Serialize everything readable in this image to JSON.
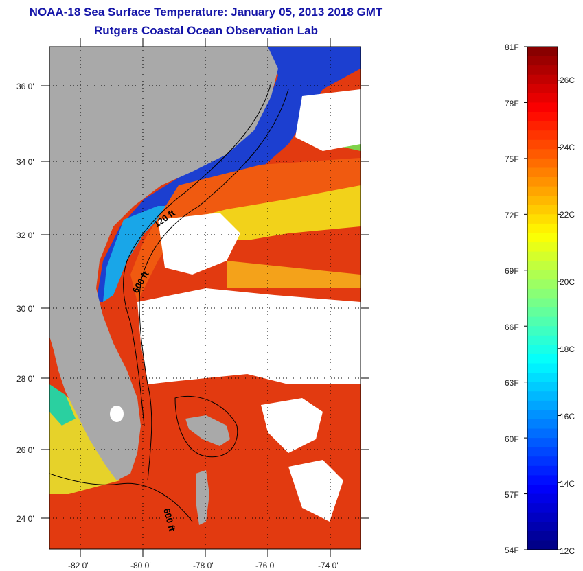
{
  "header": {
    "title": "NOAA-18 Sea Surface Temperature:  January 05, 2013 2018 GMT",
    "subtitle": "Rutgers Coastal Ocean Observation Lab"
  },
  "map": {
    "lat_labels": [
      "36 0'",
      "34 0'",
      "32 0'",
      "30 0'",
      "28 0'",
      "26 0'",
      "24 0'"
    ],
    "lon_labels": [
      "-82 0'",
      "-80 0'",
      "-78 0'",
      "-76 0'",
      "-74 0'"
    ],
    "lat_range": [
      23,
      37
    ],
    "lon_range": [
      -83,
      -73
    ],
    "contour_labels": [
      "120 ft",
      "600 ft",
      "600 ft"
    ],
    "colors": {
      "land": "#a9a9a9",
      "cloud": "#ffffff"
    }
  },
  "colorbar": {
    "fahrenheit_labels": [
      "81F",
      "78F",
      "75F",
      "72F",
      "69F",
      "66F",
      "63F",
      "60F",
      "57F",
      "54F"
    ],
    "celsius_labels": [
      "26C",
      "24C",
      "22C",
      "20C",
      "18C",
      "16C",
      "14C",
      "12C"
    ],
    "range_f": [
      54,
      81
    ],
    "range_c": [
      12,
      27
    ]
  }
}
